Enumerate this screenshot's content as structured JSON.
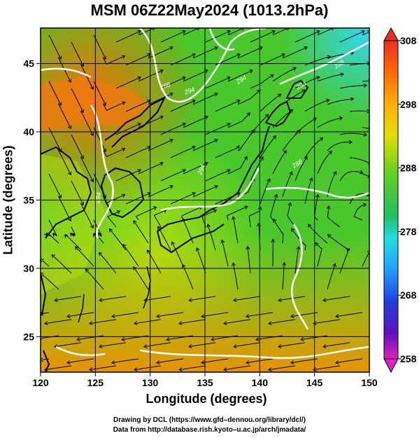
{
  "title": "MSM 06Z22May2024 (1013.2hPa)",
  "xlabel": "Longitude (degrees)",
  "ylabel": "Latitude  (degrees)",
  "credits": {
    "line1": "Drawing by DCL (https://www.gfd–dennou.org/library/dcl/)",
    "line2": "Data from http://database.rish.kyoto–u.ac.jp/arch/jmadata/"
  },
  "map": {
    "lon_range": [
      120,
      150
    ],
    "lat_range": [
      22.4,
      47.6
    ],
    "x_ticks": [
      "120",
      "125",
      "130",
      "135",
      "140",
      "145",
      "150"
    ],
    "y_ticks": [
      "25",
      "30",
      "35",
      "40",
      "45"
    ],
    "variable": "temperature (K) with wind streamlines",
    "contour_labels": [
      "288",
      "294",
      "294",
      "288",
      "294",
      "294",
      "288",
      "294"
    ]
  },
  "colorbar": {
    "ticks": [
      "308",
      "298",
      "288",
      "278",
      "268",
      "258"
    ],
    "range": [
      258,
      308
    ]
  },
  "colors": {
    "warm": "#f08000",
    "mid": "#40c820",
    "cool": "#20e0ff",
    "contour": "#ffffff",
    "coast": "#000000"
  }
}
